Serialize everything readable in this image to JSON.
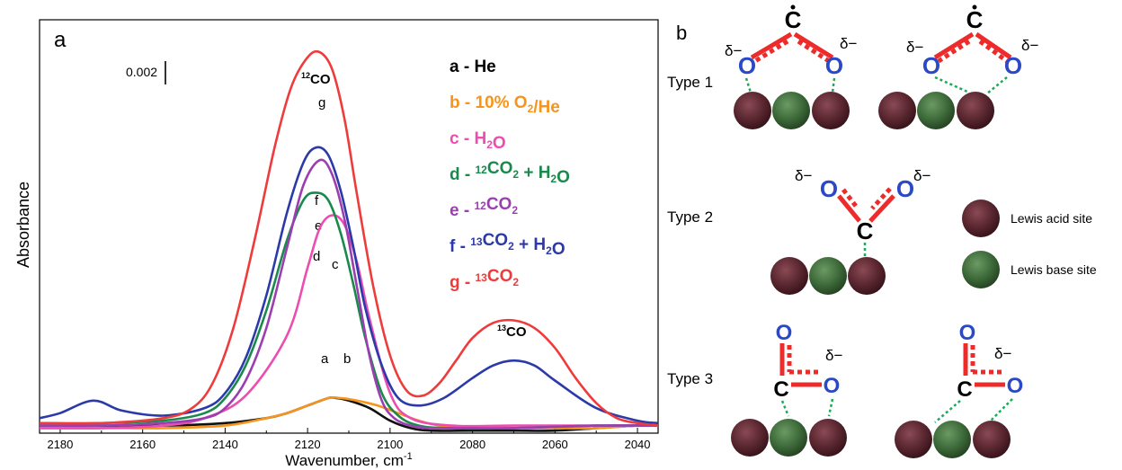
{
  "panel_a": {
    "label": "a",
    "scale_bar_label": "0.002",
    "peak_labels": [
      {
        "prefix": "12",
        "main": "CO"
      },
      {
        "prefix": "13",
        "main": "CO"
      }
    ],
    "curve_letters": [
      "a",
      "b",
      "c",
      "d",
      "e",
      "f",
      "g"
    ]
  },
  "chart_data": {
    "type": "line",
    "xlabel": "Wavenumber, cm",
    "xlabel_sup": "-1",
    "ylabel": "Absorbance",
    "xlim": [
      2185,
      2035
    ],
    "ylim": [
      0,
      0.0165
    ],
    "x_ticks": [
      2180,
      2160,
      2140,
      2120,
      2100,
      2080,
      2060,
      2040
    ],
    "x_tick_labels": [
      "2180",
      "2160",
      "2140",
      "2120",
      "2100",
      "2080",
      "2060",
      "2040"
    ],
    "legend_position": "right",
    "series": [
      {
        "id": "a",
        "legend": {
          "letter": "a",
          "dash": " - ",
          "parts": [
            {
              "t": "He"
            }
          ]
        },
        "color": "#111111",
        "x": [
          2185,
          2170,
          2155,
          2140,
          2130,
          2125,
          2120,
          2115,
          2113,
          2110,
          2105,
          2100,
          2095,
          2090,
          2080,
          2070,
          2060,
          2050,
          2040,
          2035
        ],
        "y": [
          0.0003,
          0.0003,
          0.0003,
          0.0004,
          0.0006,
          0.0008,
          0.0011,
          0.0014,
          0.0014,
          0.0013,
          0.001,
          0.0005,
          0.0002,
          0.0001,
          0.0001,
          0.0001,
          0.0001,
          0.0002,
          0.0003,
          0.0003
        ]
      },
      {
        "id": "b",
        "legend": {
          "letter": "b",
          "dash": " - ",
          "parts": [
            {
              "t": "10% O"
            },
            {
              "sub": "2"
            },
            {
              "t": "/He"
            }
          ]
        },
        "color": "#f7941d",
        "x": [
          2185,
          2170,
          2155,
          2140,
          2130,
          2125,
          2120,
          2115,
          2112,
          2108,
          2103,
          2098,
          2093,
          2088,
          2080,
          2070,
          2060,
          2050,
          2040,
          2035
        ],
        "y": [
          0.0002,
          0.0002,
          0.0002,
          0.0003,
          0.0006,
          0.0008,
          0.0011,
          0.0014,
          0.0014,
          0.0013,
          0.0011,
          0.0008,
          0.0005,
          0.0003,
          0.0002,
          0.0002,
          0.0002,
          0.0002,
          0.0003,
          0.0003
        ]
      },
      {
        "id": "c",
        "legend": {
          "letter": "c",
          "dash": " - ",
          "parts": [
            {
              "t": "H"
            },
            {
              "sub": "2"
            },
            {
              "t": "O"
            }
          ]
        },
        "color": "#ec4db0",
        "x": [
          2185,
          2170,
          2155,
          2145,
          2135,
          2125,
          2120,
          2117,
          2114,
          2111,
          2108,
          2105,
          2100,
          2095,
          2085,
          2070,
          2050,
          2035
        ],
        "y": [
          0.0002,
          0.0002,
          0.0003,
          0.0006,
          0.0015,
          0.0039,
          0.0066,
          0.0082,
          0.0087,
          0.0083,
          0.0068,
          0.0046,
          0.0016,
          0.0006,
          0.0003,
          0.0003,
          0.0003,
          0.0003
        ]
      },
      {
        "id": "d",
        "legend": {
          "letter": "d",
          "dash": " - ",
          "parts": [
            {
              "sup": "12"
            },
            {
              "t": "CO"
            },
            {
              "sub": "2"
            },
            {
              "t": " + H"
            },
            {
              "sub": "2"
            },
            {
              "t": "O"
            }
          ]
        },
        "color": "#1a8a4c",
        "x": [
          2185,
          2170,
          2155,
          2145,
          2140,
          2135,
          2130,
          2125,
          2121,
          2118,
          2115,
          2112,
          2109,
          2106,
          2102,
          2098,
          2093,
          2085,
          2070,
          2050,
          2035
        ],
        "y": [
          0.0004,
          0.0004,
          0.0005,
          0.0008,
          0.0014,
          0.0027,
          0.0049,
          0.0077,
          0.0093,
          0.0096,
          0.0093,
          0.008,
          0.006,
          0.0038,
          0.0016,
          0.0007,
          0.0003,
          0.0002,
          0.0002,
          0.0003,
          0.0003
        ]
      },
      {
        "id": "e",
        "legend": {
          "letter": "e",
          "dash": " - ",
          "parts": [
            {
              "sup": "12"
            },
            {
              "t": "CO"
            },
            {
              "sub": "2"
            }
          ]
        },
        "color": "#9b3fb0",
        "x": [
          2185,
          2170,
          2155,
          2145,
          2140,
          2135,
          2130,
          2125,
          2121,
          2117,
          2114,
          2111,
          2108,
          2105,
          2102,
          2099,
          2095,
          2090,
          2080,
          2070,
          2050,
          2035
        ],
        "y": [
          0.0003,
          0.0003,
          0.0004,
          0.0006,
          0.001,
          0.0021,
          0.0042,
          0.0074,
          0.0099,
          0.0109,
          0.0103,
          0.0085,
          0.0058,
          0.0031,
          0.0013,
          0.0006,
          0.0003,
          0.0002,
          0.0002,
          0.0002,
          0.0003,
          0.0003
        ]
      },
      {
        "id": "f",
        "legend": {
          "letter": "f",
          "dash": " - ",
          "parts": [
            {
              "sup": "13"
            },
            {
              "t": "CO"
            },
            {
              "sub": "2"
            },
            {
              "t": " + H"
            },
            {
              "sub": "2"
            },
            {
              "t": "O"
            }
          ]
        },
        "color": "#2b3aa8",
        "x": [
          2185,
          2180,
          2172,
          2165,
          2155,
          2145,
          2140,
          2135,
          2130,
          2125,
          2121,
          2118,
          2115,
          2112,
          2109,
          2106,
          2102,
          2098,
          2093,
          2087,
          2080,
          2075,
          2070,
          2065,
          2060,
          2050,
          2040,
          2035
        ],
        "y": [
          0.0006,
          0.0008,
          0.0013,
          0.0009,
          0.0007,
          0.001,
          0.0016,
          0.003,
          0.0055,
          0.0088,
          0.0108,
          0.0114,
          0.0111,
          0.0097,
          0.0075,
          0.005,
          0.0027,
          0.0014,
          0.0011,
          0.0014,
          0.0022,
          0.0027,
          0.0029,
          0.0027,
          0.0021,
          0.001,
          0.0005,
          0.0004
        ]
      },
      {
        "id": "g",
        "legend": {
          "letter": "g",
          "dash": " - ",
          "parts": [
            {
              "sup": "13"
            },
            {
              "t": "CO"
            },
            {
              "sub": "2"
            }
          ]
        },
        "color": "#ee3b3b",
        "x": [
          2185,
          2170,
          2155,
          2148,
          2143,
          2138,
          2133,
          2128,
          2124,
          2120,
          2117,
          2114,
          2111,
          2108,
          2104,
          2100,
          2096,
          2092,
          2088,
          2084,
          2080,
          2075,
          2070,
          2065,
          2060,
          2055,
          2050,
          2045,
          2040,
          2035
        ],
        "y": [
          0.0004,
          0.0004,
          0.0006,
          0.001,
          0.002,
          0.0042,
          0.0076,
          0.0114,
          0.0138,
          0.015,
          0.0152,
          0.0145,
          0.0125,
          0.0095,
          0.0058,
          0.0031,
          0.0017,
          0.0015,
          0.002,
          0.0029,
          0.0038,
          0.0044,
          0.0045,
          0.0042,
          0.0034,
          0.0022,
          0.0012,
          0.0006,
          0.0004,
          0.0003
        ]
      }
    ]
  },
  "panel_b": {
    "label": "b",
    "type_labels": [
      "Type 1",
      "Type 2",
      "Type 3"
    ],
    "delta_label": "δ−",
    "atom_c": "C",
    "atom_o": "O",
    "legend": {
      "acid": "Lewis acid site",
      "base": "Lewis base site"
    }
  },
  "colors": {
    "acid_site": "#5a2730",
    "base_site": "#3e6b3a",
    "bond": "#ee2b2b",
    "oxygen": "#2b49c4",
    "carbon": "#000000",
    "interaction": "#1aab5a"
  }
}
